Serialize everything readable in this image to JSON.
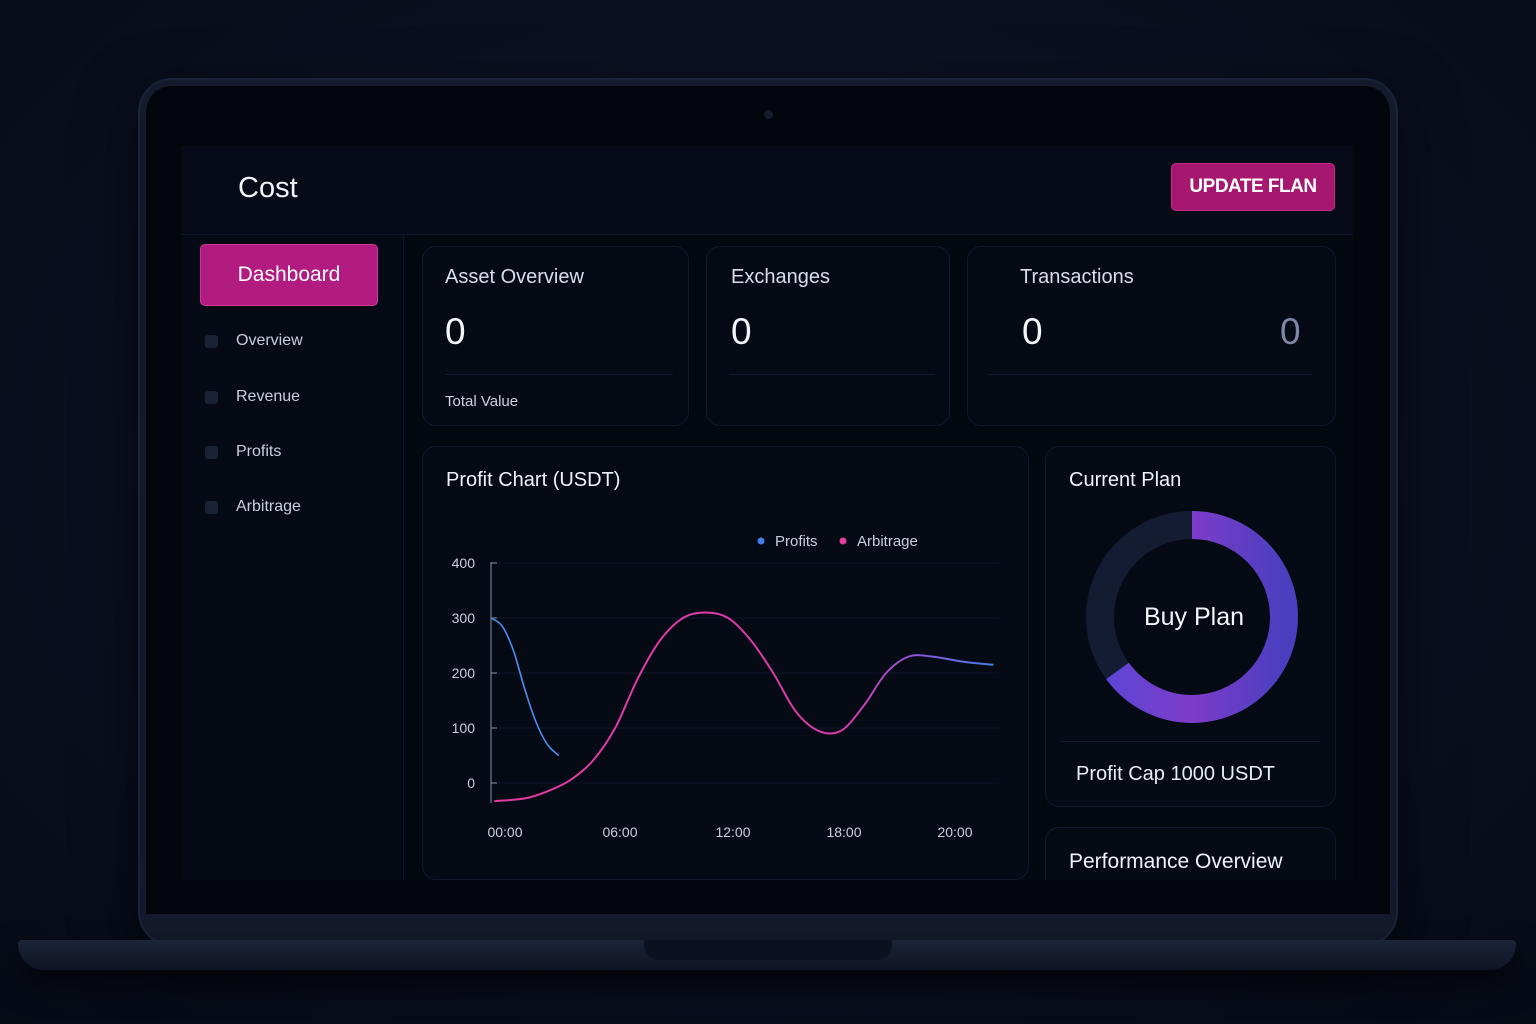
{
  "app": {
    "title": "Cost"
  },
  "header": {
    "update_button": "UPDATE FLAN"
  },
  "sidebar": {
    "active": "Dashboard",
    "items": [
      {
        "label": "Overview"
      },
      {
        "label": "Revenue"
      },
      {
        "label": "Profits"
      },
      {
        "label": "Arbitrage"
      }
    ]
  },
  "cards": {
    "asset": {
      "title": "Asset Overview",
      "value": "0",
      "subtitle": "Total Value"
    },
    "exchanges": {
      "title": "Exchanges",
      "value": "0"
    },
    "transactions": {
      "title": "Transactions",
      "value": "0",
      "secondary_value": "0"
    }
  },
  "chart_data": {
    "type": "line",
    "title": "Profit Chart (USDT)",
    "xlabel": "",
    "ylabel": "",
    "ylim": [
      -35,
      400
    ],
    "yticks": [
      400,
      300,
      200,
      100,
      0
    ],
    "xticks": [
      "00:00",
      "06:00",
      "12:00",
      "18:00",
      "20:00"
    ],
    "legend": "top-right",
    "series": [
      {
        "name": "Profits",
        "color": "#3f7fe6",
        "points": [
          [
            0,
            300
          ],
          [
            1,
            285
          ],
          [
            2,
            240
          ],
          [
            3,
            170
          ],
          [
            4,
            110
          ],
          [
            5,
            70
          ],
          [
            6,
            50
          ]
        ]
      },
      {
        "name": "Arbitrage",
        "color": "#e43b9e",
        "points": [
          [
            0.3,
            -33
          ],
          [
            3,
            -28
          ],
          [
            5,
            -15
          ],
          [
            7,
            5
          ],
          [
            9,
            40
          ],
          [
            11,
            100
          ],
          [
            13,
            190
          ],
          [
            15,
            260
          ],
          [
            17,
            300
          ],
          [
            19,
            310
          ],
          [
            21,
            300
          ],
          [
            23,
            260
          ],
          [
            25,
            200
          ],
          [
            27,
            130
          ],
          [
            29,
            95
          ],
          [
            31,
            95
          ],
          [
            33,
            140
          ],
          [
            35,
            200
          ],
          [
            37,
            230
          ],
          [
            39,
            230
          ],
          [
            42,
            220
          ],
          [
            44.5,
            215
          ]
        ]
      }
    ]
  },
  "current_plan": {
    "title": "Current Plan",
    "center_label": "Buy Plan",
    "progress_fraction": 0.65,
    "profit_cap": "Profit Cap 1000 USDT"
  },
  "performance": {
    "title": "Performance Overview"
  }
}
